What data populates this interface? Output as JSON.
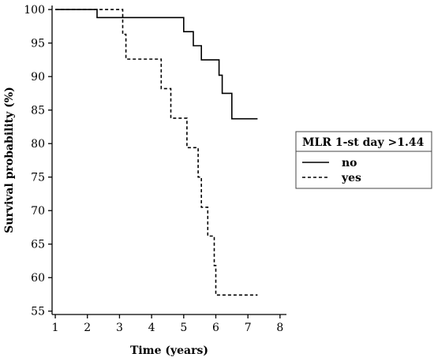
{
  "chart_data": {
    "type": "line",
    "title": "",
    "xlabel": "Time (years)",
    "ylabel": "Survival probability (%)",
    "xlim": [
      0.9,
      8.2
    ],
    "ylim": [
      54.5,
      100.6
    ],
    "xticks": [
      "1",
      "2",
      "3",
      "4",
      "5",
      "6",
      "7",
      "8"
    ],
    "yticks": [
      "55",
      "60",
      "65",
      "70",
      "75",
      "80",
      "85",
      "90",
      "95",
      "100"
    ],
    "grid": false,
    "legend": {
      "title": "MLR 1-st day >1.44",
      "placement": "right",
      "entries": [
        "no",
        "yes"
      ]
    },
    "series": [
      {
        "name": "no",
        "style": "solid",
        "color": "#000000",
        "x": [
          1,
          2.3,
          2.3,
          5.0,
          5.0,
          5.3,
          5.3,
          5.55,
          5.55,
          6.1,
          6.1,
          6.2,
          6.2,
          6.5,
          6.5,
          7.3
        ],
        "y": [
          100,
          100,
          98.8,
          98.8,
          96.7,
          96.7,
          94.6,
          94.6,
          92.5,
          92.5,
          90.2,
          90.2,
          87.5,
          87.5,
          83.7,
          83.7
        ]
      },
      {
        "name": "yes",
        "style": "dashed",
        "color": "#000000",
        "x": [
          1,
          3.1,
          3.1,
          3.2,
          3.2,
          4.3,
          4.3,
          4.6,
          4.6,
          5.1,
          5.1,
          5.45,
          5.45,
          5.55,
          5.55,
          5.75,
          5.75,
          5.95,
          5.95,
          6.0,
          6.0,
          7.3
        ],
        "y": [
          100,
          100,
          96.3,
          96.3,
          92.6,
          92.6,
          88.2,
          88.2,
          83.8,
          83.8,
          79.4,
          79.4,
          75.0,
          75.0,
          70.5,
          70.5,
          66.2,
          66.2,
          61.8,
          61.8,
          57.4,
          57.4
        ]
      }
    ]
  }
}
